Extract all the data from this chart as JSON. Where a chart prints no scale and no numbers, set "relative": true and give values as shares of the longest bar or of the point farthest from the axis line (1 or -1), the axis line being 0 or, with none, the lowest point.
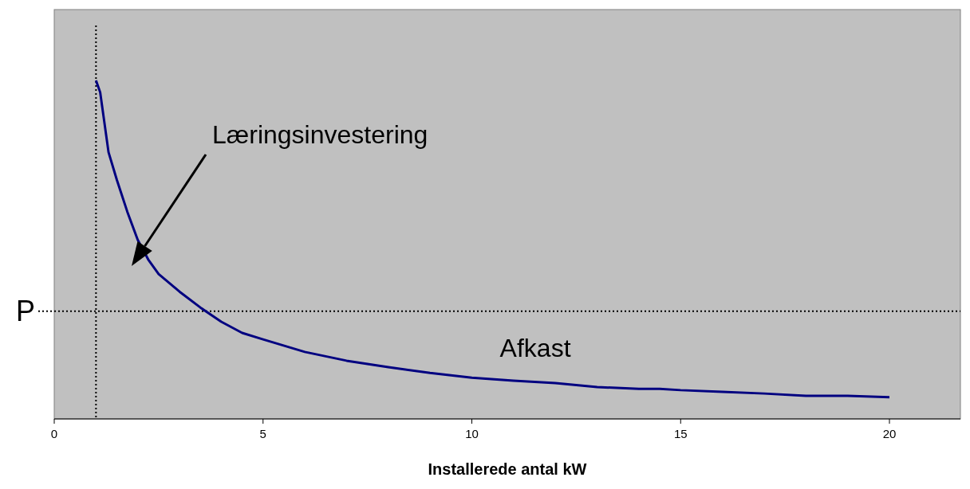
{
  "chart_data": {
    "type": "line",
    "xlabel": "Installerede antal kW",
    "relative": true,
    "xlim": [
      0,
      21.7
    ],
    "xticks": [
      0,
      5,
      10,
      15,
      20
    ],
    "series": [
      {
        "color": "#000080",
        "x": [
          1,
          1.1,
          1.3,
          1.5,
          1.75,
          2,
          2.25,
          2.5,
          3,
          3.5,
          4,
          4.5,
          5,
          6,
          7,
          8,
          9,
          10,
          11,
          12,
          13,
          14,
          14.5,
          15,
          16,
          17,
          18,
          19,
          20
        ],
        "values": [
          1.0,
          0.965,
          0.788,
          0.706,
          0.612,
          0.529,
          0.471,
          0.428,
          0.376,
          0.329,
          0.287,
          0.254,
          0.235,
          0.198,
          0.172,
          0.153,
          0.136,
          0.122,
          0.113,
          0.106,
          0.094,
          0.089,
          0.089,
          0.085,
          0.08,
          0.075,
          0.068,
          0.068,
          0.064
        ]
      }
    ],
    "ref_lines": [
      {
        "axis": "y",
        "value": 0.318,
        "label": "P",
        "line_style": "dotted",
        "color": "#000000"
      },
      {
        "axis": "x",
        "value": 1,
        "line_style": "dotted",
        "color": "#000000"
      }
    ],
    "annotations": [
      "Læringsinvestering",
      "Afkast"
    ],
    "marker": "none",
    "line_style": "solid",
    "grid": false
  }
}
